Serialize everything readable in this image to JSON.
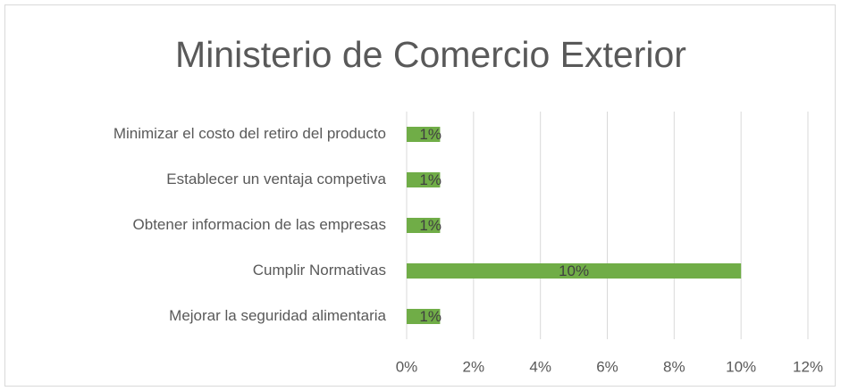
{
  "chart_data": {
    "type": "barh",
    "title": "Ministerio de Comercio Exterior",
    "categories": [
      "Minimizar el costo del retiro del producto",
      "Establecer un ventaja competiva",
      "Obtener informacion de las empresas",
      "Cumplir Normativas",
      "Mejorar la seguridad alimentaria"
    ],
    "values": [
      1,
      1,
      1,
      10,
      1
    ],
    "value_labels": [
      "1%",
      "1%",
      "1%",
      "10%",
      "1%"
    ],
    "color": "#70ad47",
    "xlim": [
      0,
      12
    ],
    "xticks": [
      {
        "value": 0,
        "label": "0%"
      },
      {
        "value": 2,
        "label": "2%"
      },
      {
        "value": 4,
        "label": "4%"
      },
      {
        "value": 6,
        "label": "6%"
      },
      {
        "value": 8,
        "label": "8%"
      },
      {
        "value": 10,
        "label": "10%"
      },
      {
        "value": 12,
        "label": "12%"
      }
    ],
    "grid": true
  }
}
